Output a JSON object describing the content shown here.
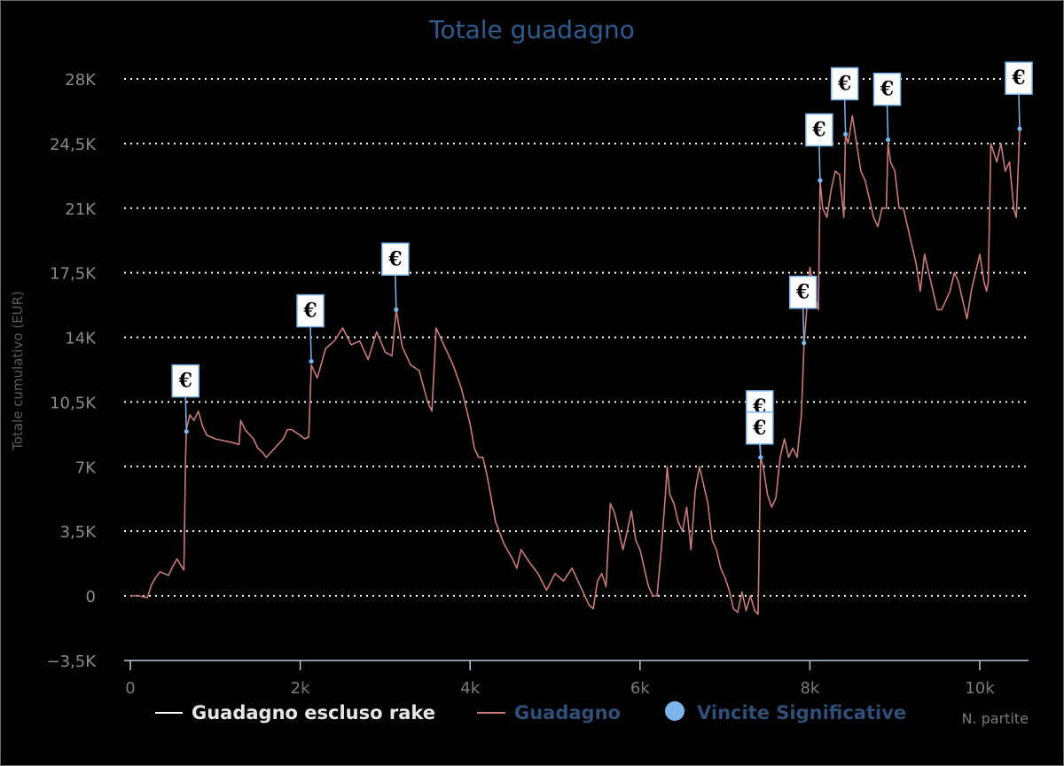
{
  "chart_data": {
    "type": "line",
    "title": "Totale guadagno",
    "xlabel": "N. partite",
    "ylabel": "Totale cumulativo (EUR)",
    "xlim": [
      -200,
      10600
    ],
    "ylim": [
      -3500,
      28000
    ],
    "x_ticks": [
      0,
      2000,
      4000,
      6000,
      8000,
      10000
    ],
    "x_tick_labels": [
      "0",
      "2k",
      "4k",
      "6k",
      "8k",
      "10k"
    ],
    "y_ticks": [
      -3500,
      0,
      3500,
      7000,
      10500,
      14000,
      17500,
      21000,
      24500,
      28000
    ],
    "y_tick_labels": [
      "−3,5K",
      "0",
      "3,5K",
      "7K",
      "10,5K",
      "14K",
      "17,5K",
      "21K",
      "24,5K",
      "28K"
    ],
    "grid": true,
    "legend_position": "bottom-center",
    "legend": [
      {
        "label": "Guadagno escluso rake",
        "symbol": "line",
        "color": "#ffffff"
      },
      {
        "label": "Guadagno",
        "symbol": "line",
        "color": "#c97b7b"
      },
      {
        "label": "Vincite Significative",
        "symbol": "circle",
        "color": "#7cb5ec"
      }
    ],
    "series": [
      {
        "name": "Guadagno",
        "color": "#c97b7b",
        "points": [
          [
            0,
            0
          ],
          [
            100,
            0
          ],
          [
            200,
            -100
          ],
          [
            250,
            600
          ],
          [
            300,
            1000
          ],
          [
            350,
            1300
          ],
          [
            400,
            1200
          ],
          [
            450,
            1100
          ],
          [
            500,
            1600
          ],
          [
            550,
            2000
          ],
          [
            600,
            1600
          ],
          [
            630,
            1400
          ],
          [
            650,
            7500
          ],
          [
            660,
            9000
          ],
          [
            700,
            9800
          ],
          [
            750,
            9500
          ],
          [
            800,
            10000
          ],
          [
            850,
            9200
          ],
          [
            900,
            8700
          ],
          [
            1000,
            8500
          ],
          [
            1100,
            8400
          ],
          [
            1200,
            8300
          ],
          [
            1280,
            8200
          ],
          [
            1300,
            9500
          ],
          [
            1350,
            9000
          ],
          [
            1450,
            8500
          ],
          [
            1500,
            8000
          ],
          [
            1550,
            7800
          ],
          [
            1600,
            7500
          ],
          [
            1700,
            8000
          ],
          [
            1800,
            8500
          ],
          [
            1850,
            9000
          ],
          [
            1900,
            9000
          ],
          [
            2000,
            8700
          ],
          [
            2050,
            8500
          ],
          [
            2100,
            8600
          ],
          [
            2130,
            12500
          ],
          [
            2200,
            11800
          ],
          [
            2300,
            13400
          ],
          [
            2400,
            13800
          ],
          [
            2500,
            14500
          ],
          [
            2600,
            13600
          ],
          [
            2700,
            13800
          ],
          [
            2800,
            12800
          ],
          [
            2900,
            14300
          ],
          [
            3000,
            13200
          ],
          [
            3080,
            13000
          ],
          [
            3130,
            15500
          ],
          [
            3200,
            13500
          ],
          [
            3300,
            12500
          ],
          [
            3400,
            12200
          ],
          [
            3500,
            10500
          ],
          [
            3550,
            10000
          ],
          [
            3600,
            14500
          ],
          [
            3700,
            13500
          ],
          [
            3800,
            12500
          ],
          [
            3900,
            11200
          ],
          [
            4000,
            9300
          ],
          [
            4050,
            8000
          ],
          [
            4100,
            7500
          ],
          [
            4150,
            7500
          ],
          [
            4200,
            6500
          ],
          [
            4300,
            4000
          ],
          [
            4400,
            2800
          ],
          [
            4500,
            2000
          ],
          [
            4550,
            1500
          ],
          [
            4600,
            2500
          ],
          [
            4700,
            1800
          ],
          [
            4800,
            1200
          ],
          [
            4900,
            300
          ],
          [
            5000,
            1200
          ],
          [
            5100,
            800
          ],
          [
            5200,
            1500
          ],
          [
            5300,
            500
          ],
          [
            5400,
            -500
          ],
          [
            5450,
            -700
          ],
          [
            5500,
            800
          ],
          [
            5550,
            1200
          ],
          [
            5600,
            500
          ],
          [
            5650,
            5000
          ],
          [
            5700,
            4500
          ],
          [
            5750,
            3500
          ],
          [
            5800,
            2500
          ],
          [
            5850,
            3500
          ],
          [
            5900,
            4600
          ],
          [
            5950,
            3000
          ],
          [
            6000,
            2500
          ],
          [
            6050,
            1500
          ],
          [
            6100,
            500
          ],
          [
            6150,
            0
          ],
          [
            6200,
            0
          ],
          [
            6250,
            2500
          ],
          [
            6300,
            5500
          ],
          [
            6320,
            7000
          ],
          [
            6350,
            5500
          ],
          [
            6400,
            5000
          ],
          [
            6450,
            4000
          ],
          [
            6500,
            3500
          ],
          [
            6550,
            4800
          ],
          [
            6600,
            2500
          ],
          [
            6650,
            5700
          ],
          [
            6700,
            7000
          ],
          [
            6750,
            6000
          ],
          [
            6800,
            5000
          ],
          [
            6850,
            3000
          ],
          [
            6900,
            2500
          ],
          [
            6950,
            1500
          ],
          [
            7000,
            1000
          ],
          [
            7050,
            300
          ],
          [
            7100,
            -700
          ],
          [
            7150,
            -900
          ],
          [
            7200,
            200
          ],
          [
            7250,
            -800
          ],
          [
            7300,
            0
          ],
          [
            7350,
            -800
          ],
          [
            7390,
            -1000
          ],
          [
            7420,
            7500
          ],
          [
            7450,
            7000
          ],
          [
            7500,
            5500
          ],
          [
            7550,
            4800
          ],
          [
            7600,
            5300
          ],
          [
            7650,
            7500
          ],
          [
            7700,
            8500
          ],
          [
            7750,
            7500
          ],
          [
            7800,
            8000
          ],
          [
            7850,
            7500
          ],
          [
            7900,
            9800
          ],
          [
            7930,
            13500
          ],
          [
            8000,
            17800
          ],
          [
            8050,
            16500
          ],
          [
            8100,
            15500
          ],
          [
            8120,
            22500
          ],
          [
            8150,
            21000
          ],
          [
            8200,
            20500
          ],
          [
            8250,
            22000
          ],
          [
            8300,
            23000
          ],
          [
            8350,
            22800
          ],
          [
            8400,
            20500
          ],
          [
            8420,
            25000
          ],
          [
            8450,
            24500
          ],
          [
            8500,
            26000
          ],
          [
            8550,
            24500
          ],
          [
            8600,
            23000
          ],
          [
            8650,
            22500
          ],
          [
            8700,
            21500
          ],
          [
            8750,
            20500
          ],
          [
            8800,
            20000
          ],
          [
            8850,
            21000
          ],
          [
            8900,
            21000
          ],
          [
            8920,
            24500
          ],
          [
            8950,
            23500
          ],
          [
            9000,
            23000
          ],
          [
            9050,
            21000
          ],
          [
            9100,
            21000
          ],
          [
            9150,
            20000
          ],
          [
            9200,
            19000
          ],
          [
            9250,
            18000
          ],
          [
            9300,
            16500
          ],
          [
            9350,
            18500
          ],
          [
            9400,
            17500
          ],
          [
            9450,
            16500
          ],
          [
            9500,
            15500
          ],
          [
            9550,
            15500
          ],
          [
            9600,
            16000
          ],
          [
            9650,
            16500
          ],
          [
            9700,
            17500
          ],
          [
            9750,
            17000
          ],
          [
            9800,
            16000
          ],
          [
            9850,
            15000
          ],
          [
            9900,
            16500
          ],
          [
            9950,
            17500
          ],
          [
            10000,
            18500
          ],
          [
            10050,
            17000
          ],
          [
            10080,
            16500
          ],
          [
            10100,
            17000
          ],
          [
            10130,
            24500
          ],
          [
            10200,
            23500
          ],
          [
            10250,
            24500
          ],
          [
            10300,
            23000
          ],
          [
            10350,
            23500
          ],
          [
            10400,
            21000
          ],
          [
            10430,
            20500
          ],
          [
            10470,
            25300
          ]
        ]
      }
    ],
    "significant_wins": [
      {
        "x": 660,
        "y": 8900,
        "label": "€"
      },
      {
        "x": 2130,
        "y": 12700,
        "label": "€"
      },
      {
        "x": 3130,
        "y": 15500,
        "label": "€"
      },
      {
        "x": 7420,
        "y": 7500,
        "label": "€"
      },
      {
        "x": 7420,
        "y": 7500,
        "label": "€"
      },
      {
        "x": 7930,
        "y": 13700,
        "label": "€"
      },
      {
        "x": 8120,
        "y": 22500,
        "label": "€"
      },
      {
        "x": 8420,
        "y": 25000,
        "label": "€"
      },
      {
        "x": 8920,
        "y": 24700,
        "label": "€"
      },
      {
        "x": 10470,
        "y": 25300,
        "label": "€"
      }
    ]
  }
}
